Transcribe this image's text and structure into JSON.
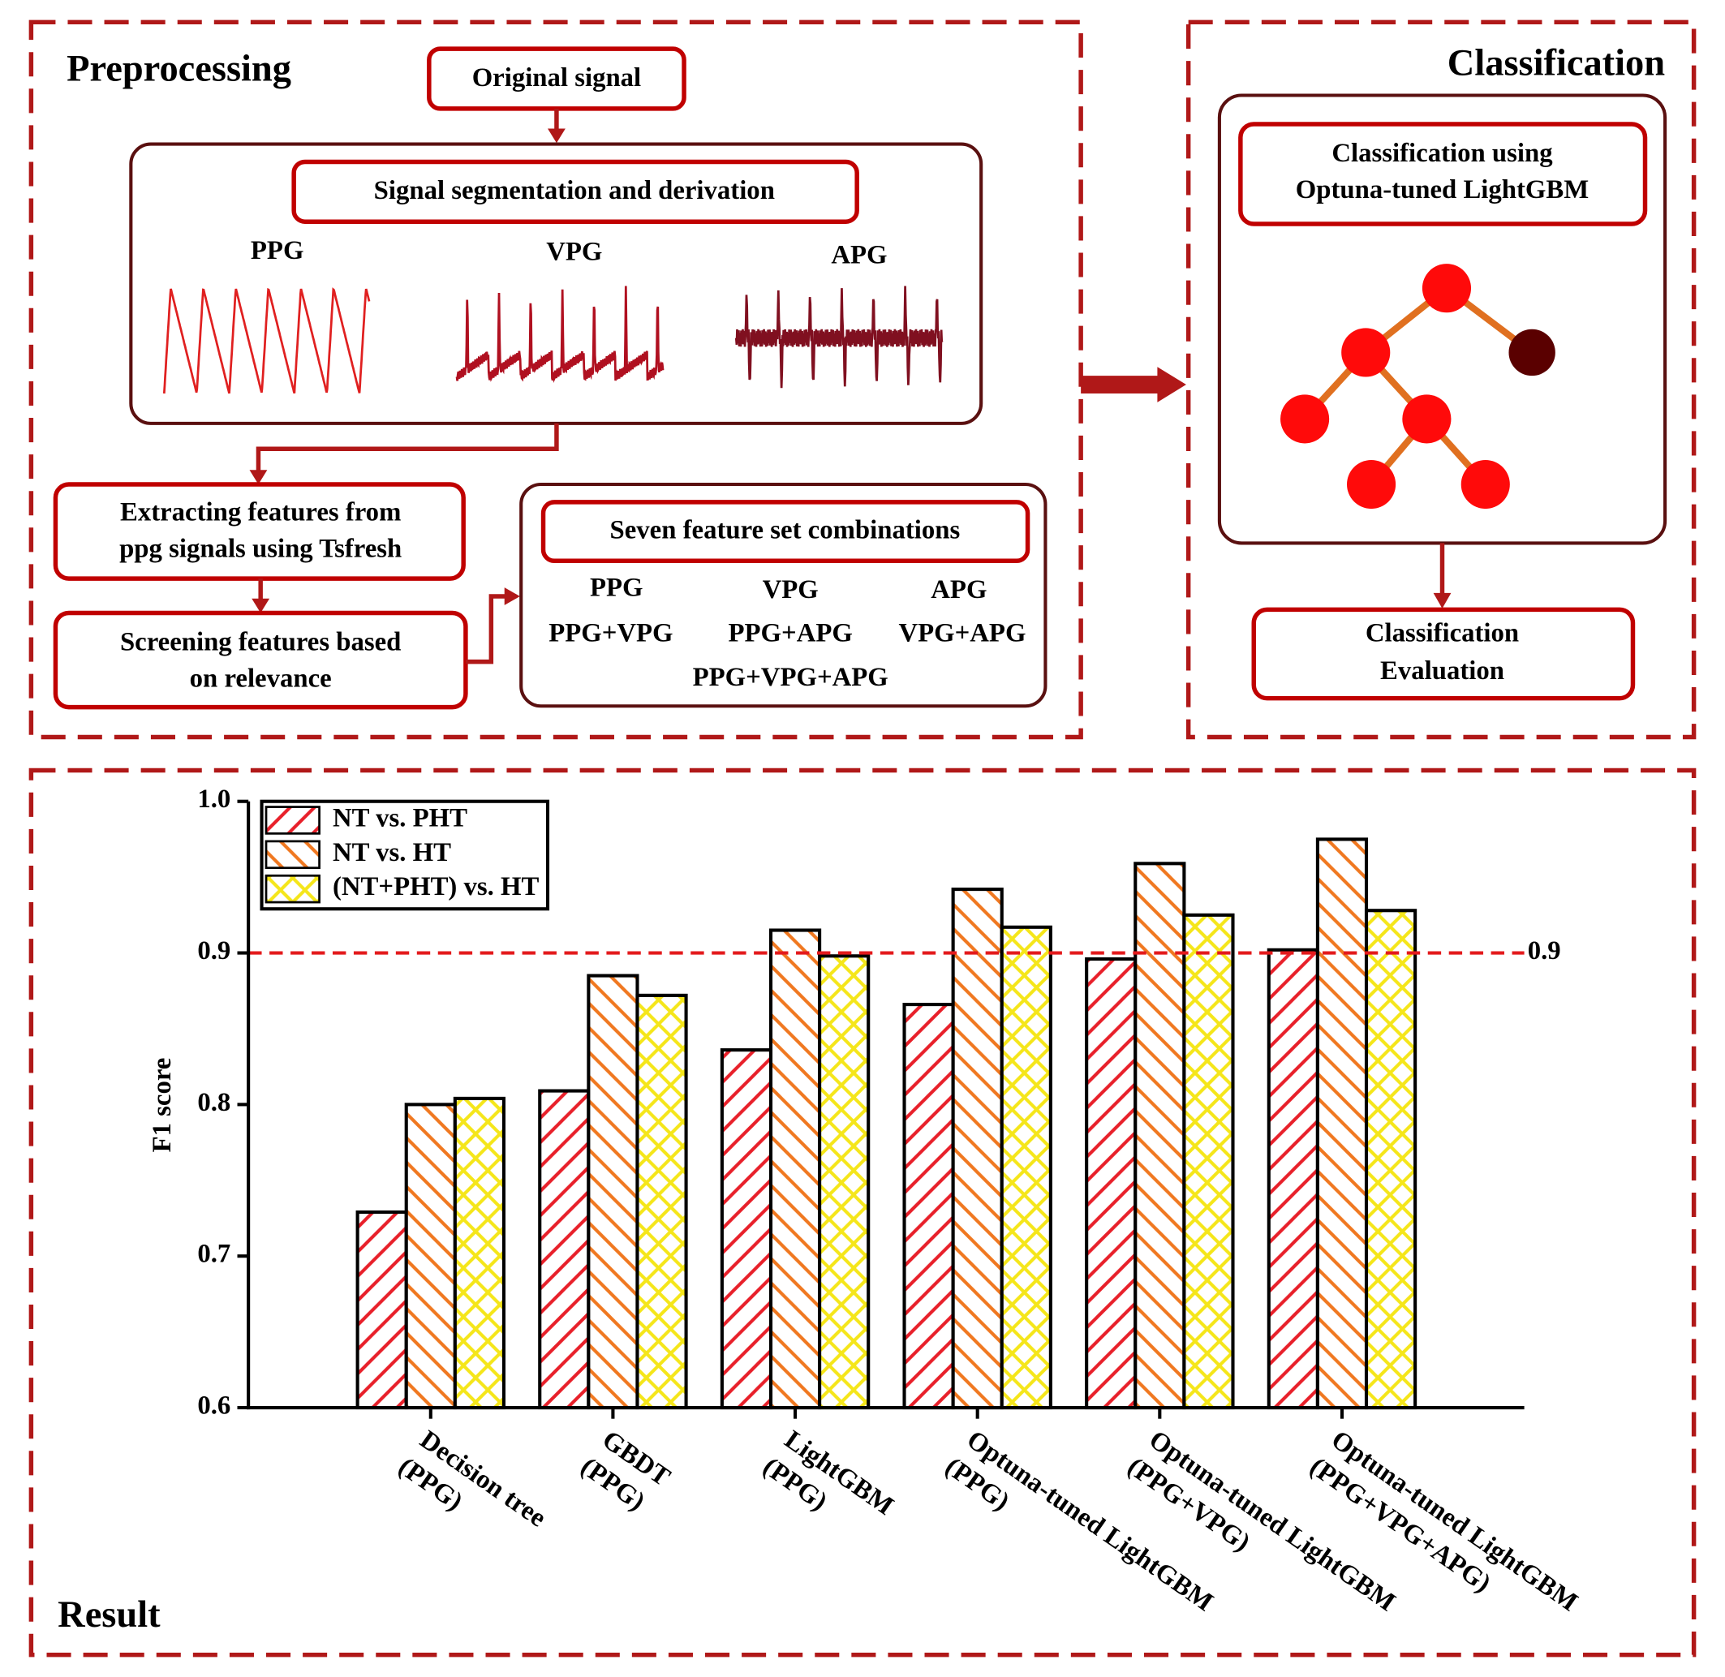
{
  "preprocessing": {
    "title": "Preprocessing",
    "original_signal": "Original signal",
    "segmentation": "Signal segmentation and derivation",
    "signals": [
      "PPG",
      "VPG",
      "APG"
    ],
    "extracting": [
      "Extracting features from",
      "ppg signals using Tsfresh"
    ],
    "screening": [
      "Screening features based",
      "on relevance"
    ],
    "combinations": {
      "title": "Seven feature set combinations",
      "items": [
        "PPG",
        "VPG",
        "APG",
        "PPG+VPG",
        "PPG+APG",
        "VPG+APG",
        "PPG+VPG+APG"
      ]
    }
  },
  "classification": {
    "title": "Classification",
    "model": [
      "Classification using",
      "Optuna-tuned LightGBM"
    ],
    "evaluation": [
      "Classification",
      "Evaluation"
    ]
  },
  "result": {
    "title": "Result"
  },
  "chart_data": {
    "type": "bar",
    "ylabel": "F1 score",
    "categories": [
      [
        "Decision tree",
        "(PPG)"
      ],
      [
        "GBDT",
        "(PPG)"
      ],
      [
        "LightGBM",
        "(PPG)"
      ],
      [
        "Optuna-tuned LightGBM",
        "(PPG)"
      ],
      [
        "Optuna-tuned LightGBM",
        "(PPG+VPG)"
      ],
      [
        "Optuna-tuned LightGBM",
        "(PPG+VPG+APG)"
      ]
    ],
    "series": [
      {
        "name": "NT vs. PHT",
        "color": "#e8202a",
        "hatch": "forward",
        "values": [
          0.729,
          0.809,
          0.836,
          0.866,
          0.896,
          0.902
        ]
      },
      {
        "name": "NT vs. HT",
        "color": "#f07820",
        "hatch": "backward",
        "values": [
          0.8,
          0.885,
          0.915,
          0.942,
          0.959,
          0.975
        ]
      },
      {
        "name": "(NT+PHT) vs. HT",
        "color": "#f5e61a",
        "hatch": "cross",
        "values": [
          0.804,
          0.872,
          0.898,
          0.917,
          0.925,
          0.928
        ]
      }
    ],
    "ylim": [
      0.6,
      1.0
    ],
    "yticks": [
      0.6,
      0.7,
      0.8,
      0.9,
      {
        "value": 1,
        "label": "1.0"
      }
    ],
    "reference_line": 0.9,
    "reference_color": "#e31a1c",
    "legend": "upper left"
  }
}
